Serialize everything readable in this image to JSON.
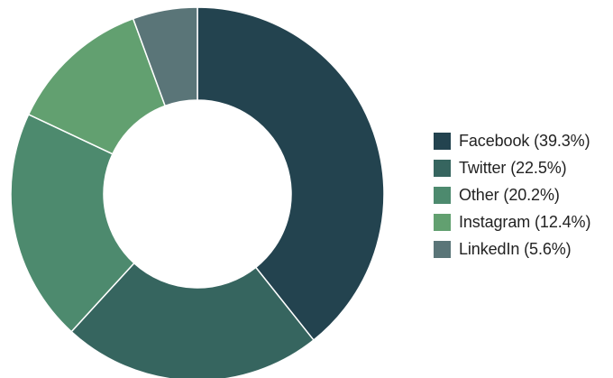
{
  "chart_data": {
    "type": "pie",
    "donut": true,
    "legend_position": "right",
    "slices": [
      {
        "label": "Facebook (39.3%)",
        "value": 39.3,
        "color": "#23434f"
      },
      {
        "label": "Twitter (22.5%)",
        "value": 22.5,
        "color": "#36655f"
      },
      {
        "label": "Other (20.2%)",
        "value": 20.2,
        "color": "#4d8a6e"
      },
      {
        "label": "Instagram (12.4%)",
        "value": 12.4,
        "color": "#62a070"
      },
      {
        "label": "LinkedIn (5.6%)",
        "value": 5.6,
        "color": "#5a7578"
      }
    ]
  }
}
